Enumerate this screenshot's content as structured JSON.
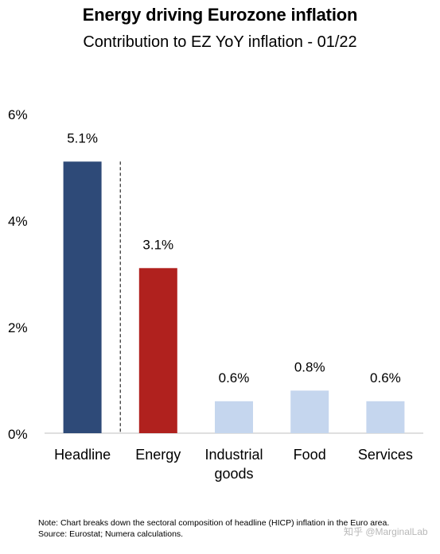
{
  "chart_data": {
    "type": "bar",
    "title": "Energy driving Eurozone inflation",
    "subtitle": "Contribution to EZ YoY inflation - 01/22",
    "categories": [
      "Headline",
      "Energy",
      "Industrial goods",
      "Food",
      "Services"
    ],
    "category_lines": [
      [
        "Headline"
      ],
      [
        "Energy"
      ],
      [
        "Industrial",
        "goods"
      ],
      [
        "Food"
      ],
      [
        "Services"
      ]
    ],
    "values": [
      5.1,
      3.1,
      0.6,
      0.8,
      0.6
    ],
    "value_labels": [
      "5.1%",
      "3.1%",
      "0.6%",
      "0.8%",
      "0.6%"
    ],
    "colors": [
      "#2e4a78",
      "#b0211e",
      "#c5d6ee",
      "#c5d6ee",
      "#c5d6ee"
    ],
    "ylim": [
      0,
      6
    ],
    "yticks": [
      0,
      2,
      4,
      6
    ],
    "ytick_labels": [
      "0%",
      "2%",
      "4%",
      "6%"
    ],
    "grid": false,
    "divider_after": "Headline"
  },
  "note": "Note: Chart breaks down the sectoral composition of headline (HICP) inflation in the Euro area. Source: Eurostat; Numera calculations.",
  "watermark": "知乎 @MarginalLab"
}
